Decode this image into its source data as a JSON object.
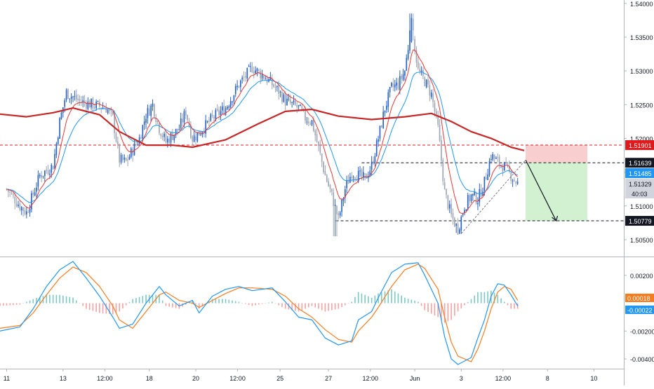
{
  "chart_data": [
    {
      "panel": "price",
      "type": "candlestick",
      "ylim": [
        1.5025,
        1.5405
      ],
      "y_ticks": [
        "1.50500",
        "1.51000",
        "1.51500",
        "1.52000",
        "1.52500",
        "1.53000",
        "1.53500",
        "1.54000"
      ],
      "x_ticks": [
        {
          "label": "11",
          "t": 0
        },
        {
          "label": "13",
          "t": 8.5
        },
        {
          "label": "12:00",
          "t": 14.8
        },
        {
          "label": "18",
          "t": 21.5
        },
        {
          "label": "20",
          "t": 28.5
        },
        {
          "label": "12:00",
          "t": 34.8
        },
        {
          "label": "25",
          "t": 41.2
        },
        {
          "label": "27",
          "t": 48.5
        },
        {
          "label": "12:00",
          "t": 54.8
        },
        {
          "label": "Jun",
          "t": 61.5
        },
        {
          "label": "3",
          "t": 68.5
        },
        {
          "label": "12:00",
          "t": 74.8
        },
        {
          "label": "8",
          "t": 81.5
        },
        {
          "label": "10",
          "t": 88.5
        }
      ],
      "t_range": [
        -1,
        93
      ],
      "price_labels": [
        {
          "text": "1.51901",
          "value": 1.51901,
          "color": "#e0191c",
          "kind": "stop"
        },
        {
          "text": "1.51639",
          "value": 1.51639,
          "color": "#131722",
          "kind": "entry"
        },
        {
          "text": "1.51485",
          "value": 1.51485,
          "color": "#2196f3",
          "kind": "ma"
        },
        {
          "text": "1.51329",
          "value": 1.51329,
          "color": "#cfd3dc",
          "kind": "last"
        },
        {
          "text": "40:03",
          "value": null,
          "color": "#cfd3dc",
          "kind": "countdown"
        },
        {
          "text": "1.50779",
          "value": 1.50779,
          "color": "#131722",
          "kind": "target"
        }
      ],
      "colors": {
        "up": "#2862c2",
        "down": "#9ea5b4",
        "ema_fast": "#e53935",
        "ema_slow": "#2196f3",
        "ma_long": "#c62828"
      },
      "series": [
        {
          "name": "",
          "kind": "candles",
          "description_points": [
            [
              0,
              1.5125
            ],
            [
              2,
              1.51
            ],
            [
              3,
              1.509
            ],
            [
              5,
              1.5145
            ],
            [
              7,
              1.516
            ],
            [
              8,
              1.5225
            ],
            [
              9,
              1.5268
            ],
            [
              11,
              1.5255
            ],
            [
              13,
              1.525
            ],
            [
              15,
              1.5245
            ],
            [
              16,
              1.523
            ],
            [
              17,
              1.5168
            ],
            [
              18,
              1.5165
            ],
            [
              20,
              1.52
            ],
            [
              21,
              1.5235
            ],
            [
              22,
              1.525
            ],
            [
              23,
              1.5215
            ],
            [
              24,
              1.5195
            ],
            [
              26,
              1.5215
            ],
            [
              27,
              1.524
            ],
            [
              28,
              1.52
            ],
            [
              29,
              1.5208
            ],
            [
              31,
              1.523
            ],
            [
              33,
              1.5245
            ],
            [
              35,
              1.528
            ],
            [
              37,
              1.5305
            ],
            [
              39,
              1.529
            ],
            [
              41,
              1.527
            ],
            [
              42,
              1.5255
            ],
            [
              44,
              1.5245
            ],
            [
              45,
              1.523
            ],
            [
              46,
              1.5225
            ],
            [
              47,
              1.5185
            ],
            [
              48,
              1.5145
            ],
            [
              49,
              1.5115
            ],
            [
              50,
              1.508
            ],
            [
              51,
              1.5125
            ],
            [
              52,
              1.515
            ],
            [
              54,
              1.514
            ],
            [
              55,
              1.516
            ],
            [
              56,
              1.52
            ],
            [
              57,
              1.5245
            ],
            [
              58,
              1.5275
            ],
            [
              59,
              1.528
            ],
            [
              60,
              1.53
            ],
            [
              61,
              1.537
            ],
            [
              62,
              1.53
            ],
            [
              63,
              1.5285
            ],
            [
              64,
              1.5265
            ],
            [
              65,
              1.5215
            ],
            [
              66,
              1.512
            ],
            [
              67,
              1.5085
            ],
            [
              68,
              1.5065
            ],
            [
              69,
              1.51
            ],
            [
              70,
              1.5115
            ],
            [
              71,
              1.511
            ],
            [
              72,
              1.5135
            ],
            [
              73,
              1.5175
            ],
            [
              74,
              1.5165
            ],
            [
              75,
              1.5158
            ],
            [
              76,
              1.5145
            ],
            [
              77,
              1.5133
            ]
          ]
        },
        {
          "name": "",
          "kind": "ma_long",
          "points": [
            [
              -1,
              1.5236
            ],
            [
              3,
              1.5232
            ],
            [
              7,
              1.5238
            ],
            [
              10,
              1.5245
            ],
            [
              14,
              1.5235
            ],
            [
              17,
              1.521
            ],
            [
              21,
              1.519
            ],
            [
              25,
              1.519
            ],
            [
              28,
              1.5187
            ],
            [
              33,
              1.5198
            ],
            [
              38,
              1.5222
            ],
            [
              42,
              1.524
            ],
            [
              46,
              1.5243
            ],
            [
              50,
              1.5233
            ],
            [
              55,
              1.5228
            ],
            [
              60,
              1.5232
            ],
            [
              64,
              1.5237
            ],
            [
              67,
              1.5225
            ],
            [
              70,
              1.521
            ],
            [
              73,
              1.52
            ],
            [
              76,
              1.5187
            ],
            [
              78,
              1.5182
            ]
          ]
        }
      ],
      "trade": {
        "entry": 1.51639,
        "stop": 1.51901,
        "target": 1.50779,
        "t_start": 78.2,
        "t_end": 87.5
      }
    },
    {
      "panel": "macd",
      "type": "line",
      "ylim": [
        -0.0047,
        0.0033
      ],
      "y_ticks": [
        "0.00200",
        "-0.00200",
        "-0.00400"
      ],
      "price_labels": [
        {
          "text": "0.00018",
          "value": 0.00018,
          "color": "#f57c1f"
        },
        {
          "text": "-0.00022",
          "value": -0.00022,
          "color": "#2196f3"
        }
      ],
      "colors": {
        "macd": "#2196f3",
        "signal": "#f57c1f",
        "hist_pos": "#7ec8c3",
        "hist_neg": "#f3a1a1"
      },
      "series": [
        {
          "name": "",
          "kind": "macd",
          "points": [
            [
              -1,
              -0.002
            ],
            [
              2,
              -0.0017
            ],
            [
              4,
              -0.0004
            ],
            [
              6,
              0.0012
            ],
            [
              8,
              0.0024
            ],
            [
              10,
              0.003
            ],
            [
              12,
              0.0018
            ],
            [
              14,
              0.0005
            ],
            [
              16,
              -0.001
            ],
            [
              17,
              -0.0018
            ],
            [
              19,
              -0.0015
            ],
            [
              21,
              0.0
            ],
            [
              23,
              0.0012
            ],
            [
              24,
              0.0006
            ],
            [
              26,
              -0.0002
            ],
            [
              28,
              0.0002
            ],
            [
              29,
              -0.0007
            ],
            [
              31,
              0.0005
            ],
            [
              33,
              0.001
            ],
            [
              35,
              0.0012
            ],
            [
              37,
              0.0009
            ],
            [
              40,
              0.0011
            ],
            [
              42,
              0.0001
            ],
            [
              44,
              -0.001
            ],
            [
              46,
              -0.0012
            ],
            [
              48,
              -0.0025
            ],
            [
              50,
              -0.003
            ],
            [
              52,
              -0.0027
            ],
            [
              53,
              -0.0012
            ],
            [
              55,
              -0.0006
            ],
            [
              56,
              0.0004
            ],
            [
              58,
              0.0022
            ],
            [
              60,
              0.0028
            ],
            [
              62,
              0.0029
            ],
            [
              63,
              0.002
            ],
            [
              65,
              0.0
            ],
            [
              66,
              -0.0024
            ],
            [
              67,
              -0.004
            ],
            [
              68,
              -0.0044
            ],
            [
              70,
              -0.0039
            ],
            [
              71,
              -0.0025
            ],
            [
              72,
              -0.0012
            ],
            [
              73,
              0.0005
            ],
            [
              74,
              0.0014
            ],
            [
              75,
              0.0013
            ],
            [
              76,
              0.0006
            ],
            [
              77,
              -0.0002
            ]
          ]
        },
        {
          "name": "",
          "kind": "signal",
          "points": [
            [
              -1,
              -0.0018
            ],
            [
              2,
              -0.0016
            ],
            [
              4,
              -0.0007
            ],
            [
              6,
              0.0006
            ],
            [
              8,
              0.0018
            ],
            [
              10,
              0.0026
            ],
            [
              12,
              0.0022
            ],
            [
              14,
              0.0012
            ],
            [
              16,
              -0.0002
            ],
            [
              17,
              -0.0012
            ],
            [
              19,
              -0.0018
            ],
            [
              21,
              -0.0006
            ],
            [
              23,
              0.0006
            ],
            [
              24,
              0.0008
            ],
            [
              26,
              0.0002
            ],
            [
              28,
              0.0
            ],
            [
              29,
              -0.0003
            ],
            [
              31,
              0.0002
            ],
            [
              33,
              0.0007
            ],
            [
              35,
              0.0011
            ],
            [
              37,
              0.0011
            ],
            [
              40,
              0.001
            ],
            [
              42,
              0.0005
            ],
            [
              44,
              -0.0004
            ],
            [
              46,
              -0.001
            ],
            [
              48,
              -0.0019
            ],
            [
              50,
              -0.0026
            ],
            [
              52,
              -0.0028
            ],
            [
              53,
              -0.002
            ],
            [
              55,
              -0.001
            ],
            [
              56,
              -0.0003
            ],
            [
              58,
              0.0012
            ],
            [
              60,
              0.0024
            ],
            [
              62,
              0.0028
            ],
            [
              63,
              0.0025
            ],
            [
              65,
              0.001
            ],
            [
              66,
              -0.001
            ],
            [
              67,
              -0.0028
            ],
            [
              68,
              -0.0038
            ],
            [
              70,
              -0.0042
            ],
            [
              71,
              -0.0033
            ],
            [
              72,
              -0.002
            ],
            [
              73,
              -0.0004
            ],
            [
              74,
              0.0008
            ],
            [
              75,
              0.0012
            ],
            [
              76,
              0.001
            ],
            [
              77,
              0.0002
            ]
          ]
        }
      ]
    }
  ]
}
